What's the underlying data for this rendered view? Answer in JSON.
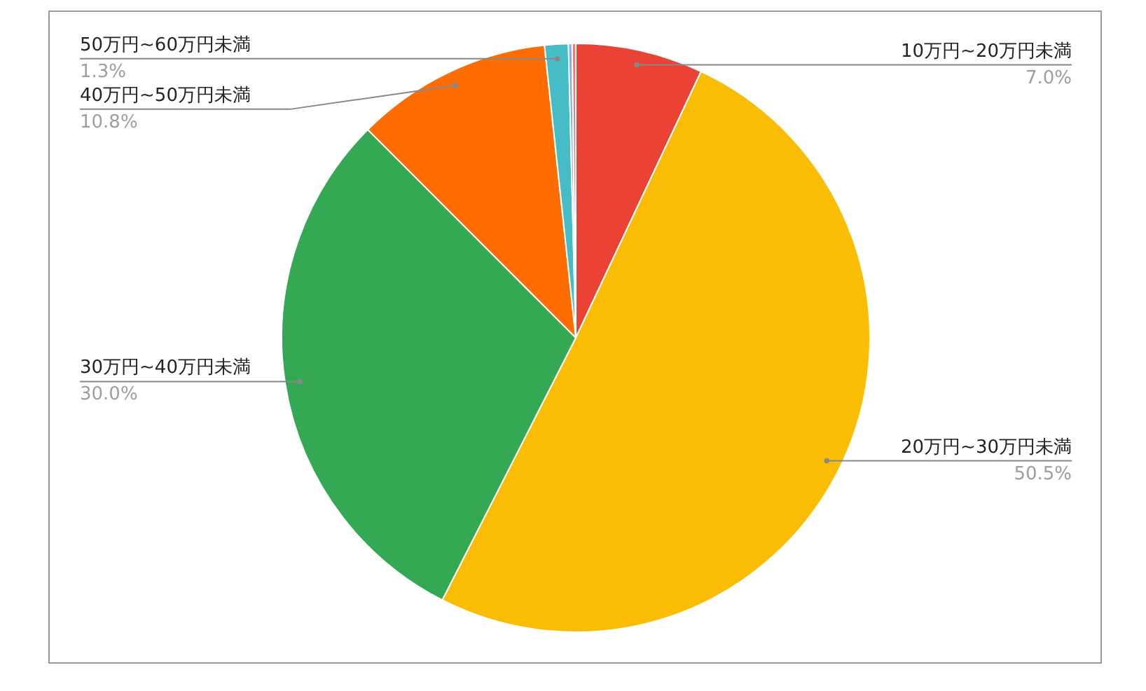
{
  "chart_data": {
    "type": "pie",
    "categories": [
      "10万円~20万円未満",
      "20万円~30万円未満",
      "30万円~40万円未満",
      "40万円~50万円未満",
      "50万円~60万円未満",
      null,
      null
    ],
    "values": [
      7.0,
      50.5,
      30.0,
      10.8,
      1.3,
      0.2,
      0.2
    ],
    "colors": [
      "#ea4335",
      "#fbbc04",
      "#34a853",
      "#ff6d01",
      "#46bdc6",
      "#7baaf7",
      "#f07b72"
    ],
    "value_labels": [
      "7.0%",
      "50.5%",
      "30.0%",
      "10.8%",
      "1.3%",
      null,
      null
    ]
  }
}
